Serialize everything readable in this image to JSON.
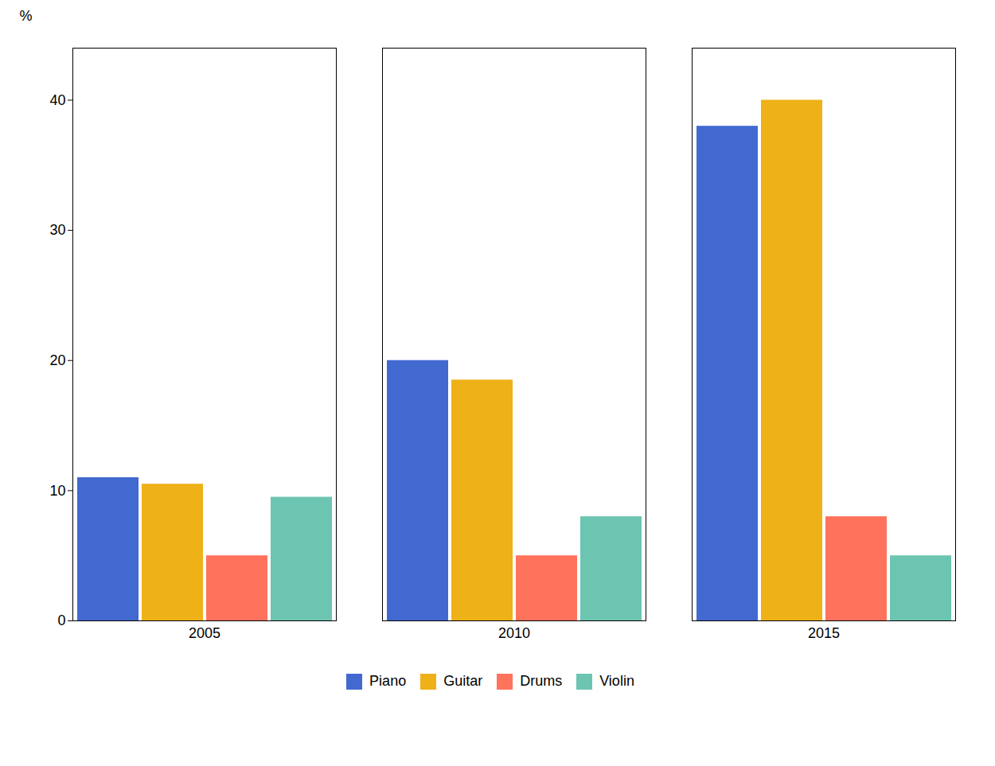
{
  "chart_data": {
    "type": "bar",
    "categories": [
      "2005",
      "2010",
      "2015"
    ],
    "series": [
      {
        "name": "Piano",
        "values": [
          11,
          20,
          38
        ]
      },
      {
        "name": "Guitar",
        "values": [
          10.5,
          18.5,
          40
        ]
      },
      {
        "name": "Drums",
        "values": [
          5,
          5,
          8
        ]
      },
      {
        "name": "Violin",
        "values": [
          9.5,
          8,
          5
        ]
      }
    ],
    "ylabel": "%",
    "ylim": [
      0,
      44
    ],
    "yticks": [
      0,
      10,
      20,
      30,
      40
    ],
    "legend": "bottom",
    "grid": false
  }
}
